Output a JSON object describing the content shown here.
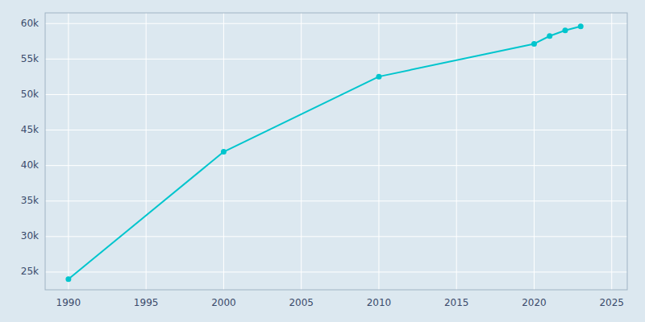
{
  "chart_data": {
    "type": "line",
    "x": [
      1990,
      2000,
      2010,
      2020,
      2021,
      2022,
      2023
    ],
    "values": [
      24007,
      41938,
      52527,
      57144,
      58239,
      59037,
      59598
    ],
    "color": "#00c5cd",
    "marker": "circle",
    "xlim": [
      1988.5,
      2026
    ],
    "ylim": [
      22500,
      61500
    ],
    "xticks": [
      1990,
      1995,
      2000,
      2005,
      2010,
      2015,
      2020,
      2025
    ],
    "yticks": [
      {
        "value": 25000,
        "label": "25k"
      },
      {
        "value": 30000,
        "label": "30k"
      },
      {
        "value": 35000,
        "label": "35k"
      },
      {
        "value": 40000,
        "label": "40k"
      },
      {
        "value": 45000,
        "label": "45k"
      },
      {
        "value": 50000,
        "label": "50k"
      },
      {
        "value": 55000,
        "label": "55k"
      },
      {
        "value": 60000,
        "label": "60k"
      }
    ],
    "grid": true
  }
}
